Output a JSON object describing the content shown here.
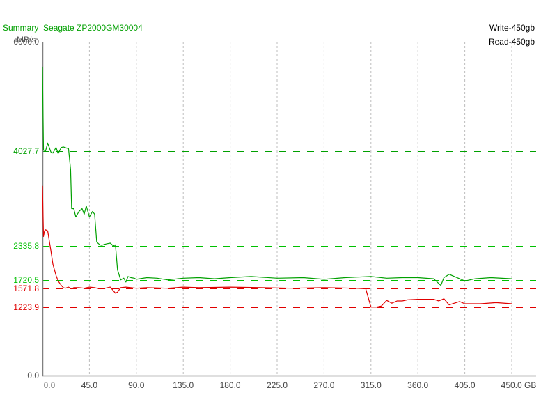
{
  "header": {
    "title": "Summary  Seagate ZP2000GM30004",
    "unit": "MB/s"
  },
  "legend": {
    "write": {
      "label": "Write-450gb",
      "color": "#e00000"
    },
    "read": {
      "label": "Read-450gb",
      "color": "#00a000"
    }
  },
  "y_axis": {
    "top_label": "6000.0",
    "zero_label": "0.0",
    "markers": [
      {
        "label": "4027.7",
        "color": "#00a000"
      },
      {
        "label": "2335.8",
        "color": "#00c000"
      },
      {
        "label": "1720.5",
        "color": "#00c000"
      },
      {
        "label": "1571.8",
        "color": "#e00000"
      },
      {
        "label": "1223.9",
        "color": "#e00000"
      }
    ]
  },
  "x_axis": {
    "ticks": [
      "0.0",
      "45.0",
      "90.0",
      "135.0",
      "180.0",
      "225.0",
      "270.0",
      "315.0",
      "360.0",
      "405.0",
      "450.0 GB"
    ]
  },
  "chart_data": {
    "type": "line",
    "title": "Summary  Seagate ZP2000GM30004",
    "xlabel": "GB",
    "ylabel": "MB/s",
    "xlim": [
      0,
      450
    ],
    "ylim": [
      0,
      6000
    ],
    "x_ticks": [
      0,
      45,
      90,
      135,
      180,
      225,
      270,
      315,
      360,
      405,
      450
    ],
    "grid": "vertical dotted",
    "legend_position": "top-right",
    "reference_lines": [
      {
        "value": 4027.7,
        "series": "Read-450gb"
      },
      {
        "value": 2335.8,
        "series": "Read-450gb"
      },
      {
        "value": 1720.5,
        "series": "Read-450gb"
      },
      {
        "value": 1571.8,
        "series": "Write-450gb"
      },
      {
        "value": 1223.9,
        "series": "Write-450gb"
      }
    ],
    "series": [
      {
        "name": "Read-450gb",
        "color": "#00a000",
        "x": [
          0,
          1,
          3,
          5,
          8,
          10,
          13,
          15,
          18,
          20,
          23,
          25,
          27,
          28,
          30,
          32,
          35,
          38,
          40,
          42,
          45,
          48,
          50,
          52,
          55,
          57,
          58,
          60,
          62,
          65,
          68,
          70,
          72,
          75,
          76,
          78,
          80,
          82,
          85,
          88,
          90,
          100,
          110,
          120,
          135,
          150,
          165,
          180,
          200,
          225,
          250,
          270,
          290,
          315,
          330,
          345,
          360,
          375,
          382,
          385,
          390,
          400,
          405,
          415,
          430,
          450
        ],
        "y": [
          5550,
          4050,
          4040,
          4180,
          4020,
          4000,
          4100,
          3990,
          4100,
          4110,
          4090,
          4080,
          3700,
          3000,
          3000,
          2850,
          2950,
          3000,
          2900,
          3050,
          2850,
          2950,
          2900,
          2400,
          2350,
          2340,
          2350,
          2360,
          2370,
          2380,
          2330,
          2350,
          1900,
          1720,
          1730,
          1750,
          1680,
          1780,
          1760,
          1750,
          1730,
          1760,
          1750,
          1720,
          1750,
          1760,
          1740,
          1760,
          1780,
          1750,
          1760,
          1730,
          1760,
          1780,
          1750,
          1760,
          1760,
          1740,
          1620,
          1760,
          1820,
          1740,
          1700,
          1740,
          1760,
          1740
        ]
      },
      {
        "name": "Write-450gb",
        "color": "#e00000",
        "x": [
          0,
          1,
          2,
          3,
          5,
          8,
          10,
          13,
          15,
          18,
          20,
          22,
          25,
          28,
          30,
          35,
          40,
          45,
          50,
          55,
          60,
          65,
          70,
          72,
          75,
          80,
          90,
          100,
          120,
          135,
          150,
          180,
          210,
          240,
          270,
          300,
          310,
          313,
          315,
          320,
          325,
          330,
          335,
          340,
          345,
          350,
          360,
          375,
          380,
          385,
          390,
          400,
          405,
          420,
          435,
          450
        ],
        "y": [
          3410,
          2500,
          2600,
          2620,
          2600,
          2250,
          2000,
          1800,
          1700,
          1620,
          1580,
          1570,
          1590,
          1560,
          1580,
          1580,
          1570,
          1590,
          1580,
          1560,
          1570,
          1590,
          1480,
          1500,
          1580,
          1590,
          1570,
          1580,
          1570,
          1590,
          1580,
          1590,
          1580,
          1570,
          1580,
          1570,
          1560,
          1360,
          1230,
          1230,
          1250,
          1350,
          1300,
          1340,
          1340,
          1360,
          1370,
          1370,
          1340,
          1380,
          1270,
          1330,
          1290,
          1290,
          1310,
          1290
        ]
      }
    ]
  }
}
